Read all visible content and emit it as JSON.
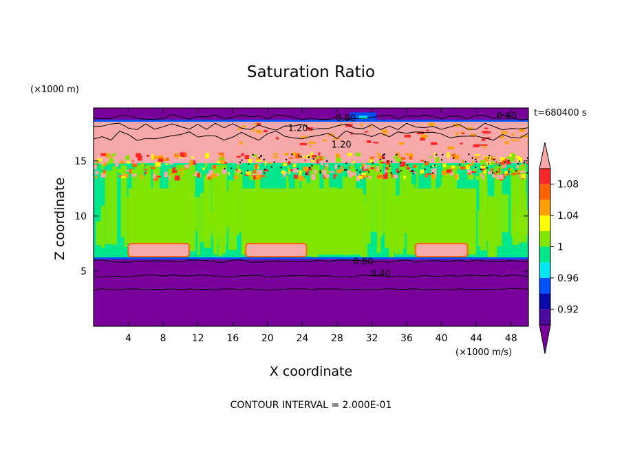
{
  "chart_data": {
    "type": "heatmap",
    "title": "Saturation Ratio",
    "xlabel": "X coordinate",
    "ylabel": "Z coordinate",
    "x_unit": "(×1000 m/s)",
    "y_unit": "(×1000 m)",
    "time_label": "t=680400 s",
    "footer": "CONTOUR INTERVAL = 2.000E-01",
    "xlim": [
      0,
      50
    ],
    "ylim": [
      0,
      19.8
    ],
    "xticks": [
      4,
      8,
      12,
      16,
      20,
      24,
      28,
      32,
      36,
      40,
      44,
      48
    ],
    "yticks": [
      5,
      10,
      15
    ],
    "colorbar": {
      "colors": [
        "#7a009c",
        "#4b0aa0",
        "#0a0aaa",
        "#0050ff",
        "#00e6f0",
        "#00e68c",
        "#82e600",
        "#ffff00",
        "#ffa000",
        "#ff6400",
        "#ff2828",
        "#f7a8a8"
      ],
      "tick_labels": [
        "0.92",
        "0.96",
        "1",
        "1.04",
        "1.08"
      ],
      "tick_values": [
        0.92,
        0.96,
        1.0,
        1.04,
        1.08
      ],
      "boundaries": [
        0.9,
        0.92,
        0.94,
        0.96,
        0.98,
        1.0,
        1.02,
        1.04,
        1.06,
        1.08,
        1.1
      ],
      "extend": "both"
    },
    "contour_labels": [
      {
        "text": "0.80",
        "x": 29.0,
        "z": 18.6
      },
      {
        "text": "0.80",
        "x": 47.5,
        "z": 18.8
      },
      {
        "text": "1.20",
        "x": 23.5,
        "z": 17.7
      },
      {
        "text": "1.20",
        "x": 28.5,
        "z": 16.2
      },
      {
        "text": "0.80",
        "x": 31.0,
        "z": 5.6
      },
      {
        "text": "0.40",
        "x": 33.0,
        "z": 4.5
      }
    ],
    "regions": [
      {
        "label": "upper dry layer",
        "x": [
          0,
          50
        ],
        "z": [
          18.6,
          19.8
        ],
        "color": "#7a009c"
      },
      {
        "label": "supersaturated layer",
        "x": [
          0,
          50
        ],
        "z": [
          14.8,
          18.6
        ],
        "color": "#f7a8a8"
      },
      {
        "label": "near-saturated cloud layer",
        "x": [
          0,
          50
        ],
        "z": [
          6.1,
          14.8
        ],
        "color": "#00e68c"
      },
      {
        "label": "lower dry layer",
        "x": [
          0,
          50
        ],
        "z": [
          0,
          6.1
        ],
        "color": "#7a009c"
      }
    ],
    "pink_cells": [
      {
        "x": [
          4,
          11
        ],
        "z": [
          6.3,
          7.5
        ]
      },
      {
        "x": [
          17.5,
          24.5
        ],
        "z": [
          6.3,
          7.5
        ]
      },
      {
        "x": [
          37,
          43
        ],
        "z": [
          6.3,
          7.5
        ]
      }
    ]
  }
}
